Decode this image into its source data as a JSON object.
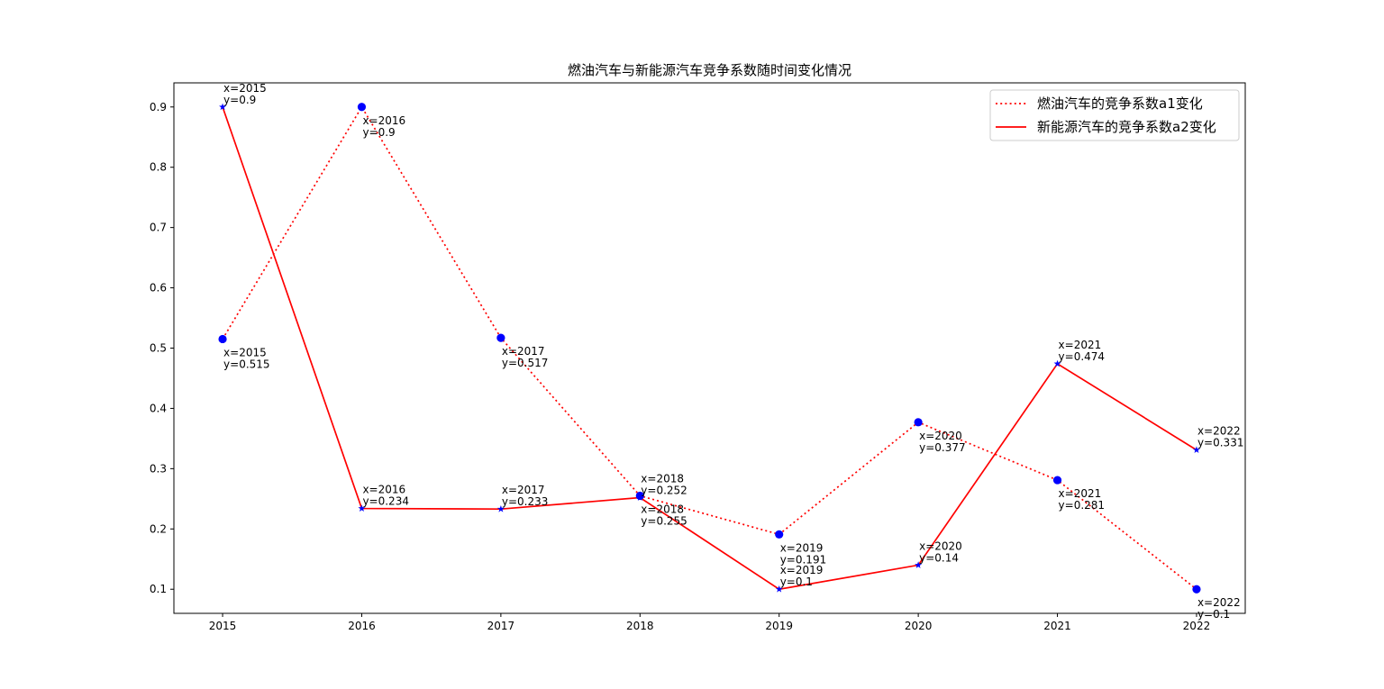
{
  "chart_data": {
    "type": "line",
    "title": "燃油汽车与新能源汽车竞争系数随时间变化情况",
    "xlabel": "",
    "ylabel": "",
    "x": [
      2015,
      2016,
      2017,
      2018,
      2019,
      2020,
      2021,
      2022
    ],
    "xlim": [
      2014.65,
      2022.35
    ],
    "ylim": [
      0.06,
      0.94
    ],
    "yticks": [
      0.1,
      0.2,
      0.3,
      0.4,
      0.5,
      0.6,
      0.7,
      0.8,
      0.9
    ],
    "yticks_text": [
      "0.1",
      "0.2",
      "0.3",
      "0.4",
      "0.5",
      "0.6",
      "0.7",
      "0.8",
      "0.9"
    ],
    "grid": false,
    "legend_position": "top-right",
    "series": [
      {
        "name": "燃油汽车的竞争系数a1变化",
        "values": [
          0.515,
          0.9,
          0.517,
          0.255,
          0.191,
          0.377,
          0.281,
          0.1
        ],
        "color": "#ff0000",
        "line_style": "dotted",
        "marker": "circle",
        "marker_color": "#0000ff",
        "annotations": [
          [
            "x=2015",
            "y=0.515"
          ],
          [
            "x=2016",
            "y=0.9"
          ],
          [
            "x=2017",
            "y=0.517"
          ],
          [
            "x=2018",
            "y=0.255"
          ],
          [
            "x=2019",
            "y=0.191"
          ],
          [
            "x=2020",
            "y=0.377"
          ],
          [
            "x=2021",
            "y=0.281"
          ],
          [
            "x=2022",
            "y=0.1"
          ]
        ]
      },
      {
        "name": "新能源汽车的竞争系数a2变化",
        "values": [
          0.9,
          0.234,
          0.233,
          0.252,
          0.1,
          0.14,
          0.474,
          0.331
        ],
        "color": "#ff0000",
        "line_style": "solid",
        "marker": "star",
        "marker_color": "#0000ff",
        "annotations": [
          [
            "x=2015",
            "y=0.9"
          ],
          [
            "x=2016",
            "y=0.234"
          ],
          [
            "x=2017",
            "y=0.233"
          ],
          [
            "x=2018",
            "y=0.252"
          ],
          [
            "x=2019",
            "y=0.1"
          ],
          [
            "x=2020",
            "y=0.14"
          ],
          [
            "x=2021",
            "y=0.474"
          ],
          [
            "x=2022",
            "y=0.331"
          ]
        ]
      }
    ]
  }
}
